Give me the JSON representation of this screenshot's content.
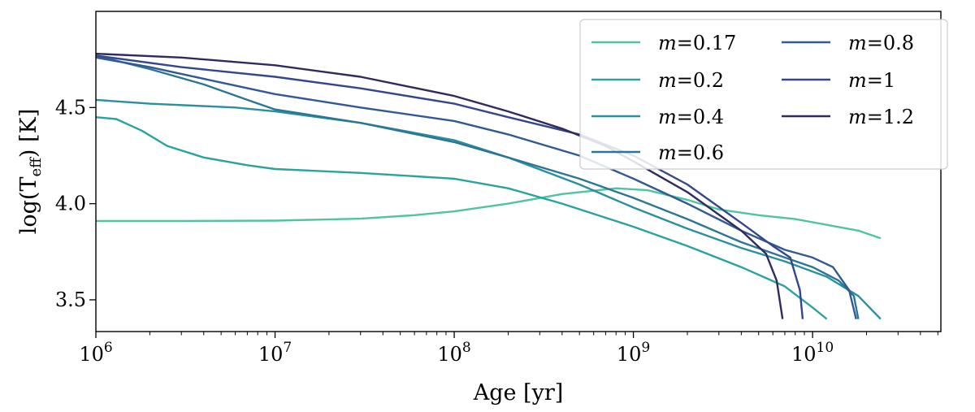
{
  "chart_data": {
    "type": "line",
    "title": "",
    "xlabel": "Age [yr]",
    "ylabel_main": "log(T",
    "ylabel_sub": "eff",
    "ylabel_tail": ") [K]",
    "xscale": "log",
    "xlim": [
      1000000,
      52000000000
    ],
    "ylim": [
      3.335,
      5.0
    ],
    "grid": false,
    "legend_location": "upper-right",
    "legend_columns": 2,
    "xticks": [
      {
        "value": 1000000,
        "base": "10",
        "exp": "6"
      },
      {
        "value": 10000000,
        "base": "10",
        "exp": "7"
      },
      {
        "value": 100000000,
        "base": "10",
        "exp": "8"
      },
      {
        "value": 1000000000,
        "base": "10",
        "exp": "9"
      },
      {
        "value": 10000000000,
        "base": "10",
        "exp": "10"
      }
    ],
    "yticks": [
      {
        "value": 3.5,
        "label": "3.5"
      },
      {
        "value": 4.0,
        "label": "4.0"
      },
      {
        "value": 4.5,
        "label": "4.5"
      }
    ],
    "series": [
      {
        "name": "=0.17",
        "mass": 0.17,
        "color": "#4fc4a1",
        "points": [
          [
            1000000,
            3.91
          ],
          [
            3000000,
            3.91
          ],
          [
            10000000,
            3.912
          ],
          [
            30000000,
            3.922
          ],
          [
            60000000,
            3.94
          ],
          [
            100000000,
            3.96
          ],
          [
            200000000,
            4.0
          ],
          [
            400000000,
            4.05
          ],
          [
            800000000,
            4.08
          ],
          [
            1200000000,
            4.07
          ],
          [
            2000000000,
            4.02
          ],
          [
            3000000000,
            3.97
          ],
          [
            5000000000,
            3.94
          ],
          [
            8000000000,
            3.92
          ],
          [
            12000000000,
            3.89
          ],
          [
            18000000000,
            3.86
          ],
          [
            24000000000,
            3.82
          ]
        ]
      },
      {
        "name": "=0.2",
        "mass": 0.2,
        "color": "#2aa39f",
        "points": [
          [
            1000000,
            4.45
          ],
          [
            1300000,
            4.44
          ],
          [
            1800000,
            4.38
          ],
          [
            2500000,
            4.3
          ],
          [
            4000000,
            4.24
          ],
          [
            7000000,
            4.2
          ],
          [
            10000000,
            4.18
          ],
          [
            30000000,
            4.16
          ],
          [
            100000000,
            4.13
          ],
          [
            200000000,
            4.08
          ],
          [
            400000000,
            4.0
          ],
          [
            1000000000,
            3.88
          ],
          [
            2000000000,
            3.78
          ],
          [
            4000000000,
            3.67
          ],
          [
            7000000000,
            3.57
          ],
          [
            10000000000,
            3.46
          ],
          [
            12000000000,
            3.4
          ]
        ]
      },
      {
        "name": "=0.4",
        "mass": 0.4,
        "color": "#2a8f9e",
        "points": [
          [
            1000000,
            4.54
          ],
          [
            2000000,
            4.52
          ],
          [
            6000000,
            4.5
          ],
          [
            10000000,
            4.48
          ],
          [
            30000000,
            4.42
          ],
          [
            100000000,
            4.33
          ],
          [
            200000000,
            4.24
          ],
          [
            500000000,
            4.1
          ],
          [
            1000000000,
            3.98
          ],
          [
            2000000000,
            3.87
          ],
          [
            4000000000,
            3.77
          ],
          [
            7000000000,
            3.7
          ],
          [
            12000000000,
            3.62
          ],
          [
            18000000000,
            3.52
          ],
          [
            24000000000,
            3.4
          ]
        ]
      },
      {
        "name": "=0.6",
        "mass": 0.6,
        "color": "#2b7696",
        "points": [
          [
            1000000,
            4.77
          ],
          [
            2000000,
            4.7
          ],
          [
            4000000,
            4.62
          ],
          [
            7000000,
            4.54
          ],
          [
            10000000,
            4.49
          ],
          [
            30000000,
            4.42
          ],
          [
            100000000,
            4.32
          ],
          [
            200000000,
            4.24
          ],
          [
            500000000,
            4.13
          ],
          [
            1000000000,
            4.03
          ],
          [
            2000000000,
            3.92
          ],
          [
            4000000000,
            3.8
          ],
          [
            7000000000,
            3.72
          ],
          [
            10000000000,
            3.67
          ],
          [
            14000000000,
            3.6
          ],
          [
            17000000000,
            3.52
          ],
          [
            18000000000,
            3.4
          ]
        ]
      },
      {
        "name": "=0.8",
        "mass": 0.8,
        "color": "#315993",
        "points": [
          [
            1000000,
            4.76
          ],
          [
            2000000,
            4.71
          ],
          [
            5000000,
            4.63
          ],
          [
            10000000,
            4.57
          ],
          [
            30000000,
            4.5
          ],
          [
            100000000,
            4.43
          ],
          [
            200000000,
            4.36
          ],
          [
            500000000,
            4.25
          ],
          [
            1000000000,
            4.13
          ],
          [
            2000000000,
            4.0
          ],
          [
            4000000000,
            3.86
          ],
          [
            7000000000,
            3.76
          ],
          [
            10000000000,
            3.72
          ],
          [
            13000000000,
            3.67
          ],
          [
            16000000000,
            3.55
          ],
          [
            17500000000,
            3.4
          ]
        ]
      },
      {
        "name": "=1",
        "mass": 1,
        "color": "#34478a",
        "points": [
          [
            1000000,
            4.77
          ],
          [
            3000000,
            4.71
          ],
          [
            10000000,
            4.66
          ],
          [
            30000000,
            4.6
          ],
          [
            100000000,
            4.52
          ],
          [
            200000000,
            4.45
          ],
          [
            500000000,
            4.36
          ],
          [
            1000000000,
            4.25
          ],
          [
            2000000000,
            4.1
          ],
          [
            4000000000,
            3.9
          ],
          [
            6000000000,
            3.78
          ],
          [
            7500000000,
            3.72
          ],
          [
            8500000000,
            3.55
          ],
          [
            8800000000,
            3.4
          ]
        ]
      },
      {
        "name": "=1.2",
        "mass": 1.2,
        "color": "#302b5e",
        "points": [
          [
            1000000,
            4.78
          ],
          [
            3000000,
            4.76
          ],
          [
            10000000,
            4.72
          ],
          [
            30000000,
            4.66
          ],
          [
            100000000,
            4.56
          ],
          [
            200000000,
            4.48
          ],
          [
            400000000,
            4.39
          ],
          [
            700000000,
            4.3
          ],
          [
            1000000000,
            4.22
          ],
          [
            2000000000,
            4.06
          ],
          [
            4000000000,
            3.86
          ],
          [
            5500000000,
            3.74
          ],
          [
            6300000000,
            3.6
          ],
          [
            6800000000,
            3.4
          ]
        ]
      }
    ]
  },
  "legend": {
    "symbol": "m",
    "order": [
      {
        "col": 0,
        "row": 0,
        "series": 0
      },
      {
        "col": 0,
        "row": 1,
        "series": 1
      },
      {
        "col": 0,
        "row": 2,
        "series": 2
      },
      {
        "col": 0,
        "row": 3,
        "series": 3
      },
      {
        "col": 1,
        "row": 0,
        "series": 4
      },
      {
        "col": 1,
        "row": 1,
        "series": 5
      },
      {
        "col": 1,
        "row": 2,
        "series": 6
      }
    ]
  }
}
